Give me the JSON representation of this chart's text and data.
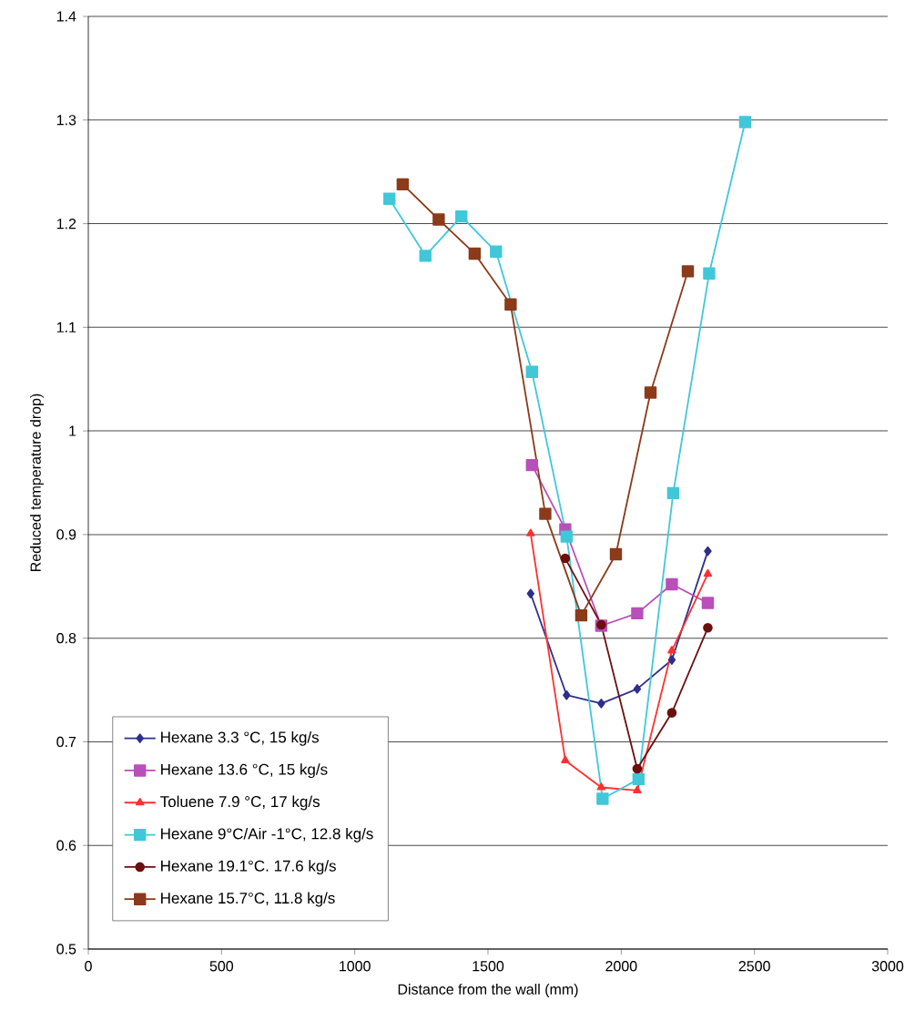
{
  "chart_data": {
    "type": "line",
    "xlabel": "Distance from the wall  (mm)",
    "ylabel": "Reduced temperature drop)",
    "xlim": [
      0,
      3000
    ],
    "xticks": [
      0,
      500,
      1000,
      1500,
      2000,
      2500,
      3000
    ],
    "ylim": [
      0.5,
      1.4
    ],
    "yticks": [
      0.5,
      0.6,
      0.7,
      0.8,
      0.9,
      1,
      1.1,
      1.2,
      1.3,
      1.4
    ],
    "grid": "y",
    "legend": "bottom left",
    "series": [
      {
        "name": "Hexane 3.3 °C, 15 kg/s",
        "color": "#2e2e8c",
        "marker": "diamond",
        "x": [
          1660,
          1795,
          1925,
          2060,
          2190,
          2325
        ],
        "values": [
          0.843,
          0.745,
          0.737,
          0.751,
          0.779,
          0.884
        ]
      },
      {
        "name": "Hexane 13.6 °C, 15 kg/s",
        "color": "#b94fb9",
        "marker": "square",
        "x": [
          1665,
          1790,
          1925,
          2060,
          2190,
          2325
        ],
        "values": [
          0.967,
          0.905,
          0.812,
          0.824,
          0.852,
          0.834
        ]
      },
      {
        "name": "Toluene 7.9 °C, 17 kg/s",
        "color": "#ff3030",
        "marker": "triangle",
        "x": [
          1660,
          1790,
          1925,
          2060,
          2190,
          2325
        ],
        "values": [
          0.901,
          0.682,
          0.656,
          0.653,
          0.788,
          0.862
        ]
      },
      {
        "name": "Hexane 9°C/Air -1°C, 12.8 kg/s",
        "color": "#40c8d8",
        "marker": "square",
        "x": [
          1130,
          1265,
          1400,
          1530,
          1665,
          1795,
          1930,
          2065,
          2195,
          2330,
          2465
        ],
        "values": [
          1.224,
          1.169,
          1.207,
          1.173,
          1.057,
          0.898,
          0.645,
          0.664,
          0.94,
          1.152,
          1.298
        ]
      },
      {
        "name": "Hexane 19.1°C. 17.6 kg/s",
        "color": "#6b0f0f",
        "marker": "circle",
        "x": [
          1790,
          1925,
          2060,
          2190,
          2325
        ],
        "values": [
          0.877,
          0.813,
          0.674,
          0.728,
          0.81
        ]
      },
      {
        "name": "Hexane 15.7°C, 11.8 kg/s",
        "color": "#8b3a1a",
        "marker": "square",
        "x": [
          1180,
          1315,
          1450,
          1585,
          1715,
          1850,
          1980,
          2110,
          2250
        ],
        "values": [
          1.238,
          1.204,
          1.171,
          1.122,
          0.92,
          0.822,
          0.881,
          1.037,
          1.154
        ]
      }
    ]
  }
}
